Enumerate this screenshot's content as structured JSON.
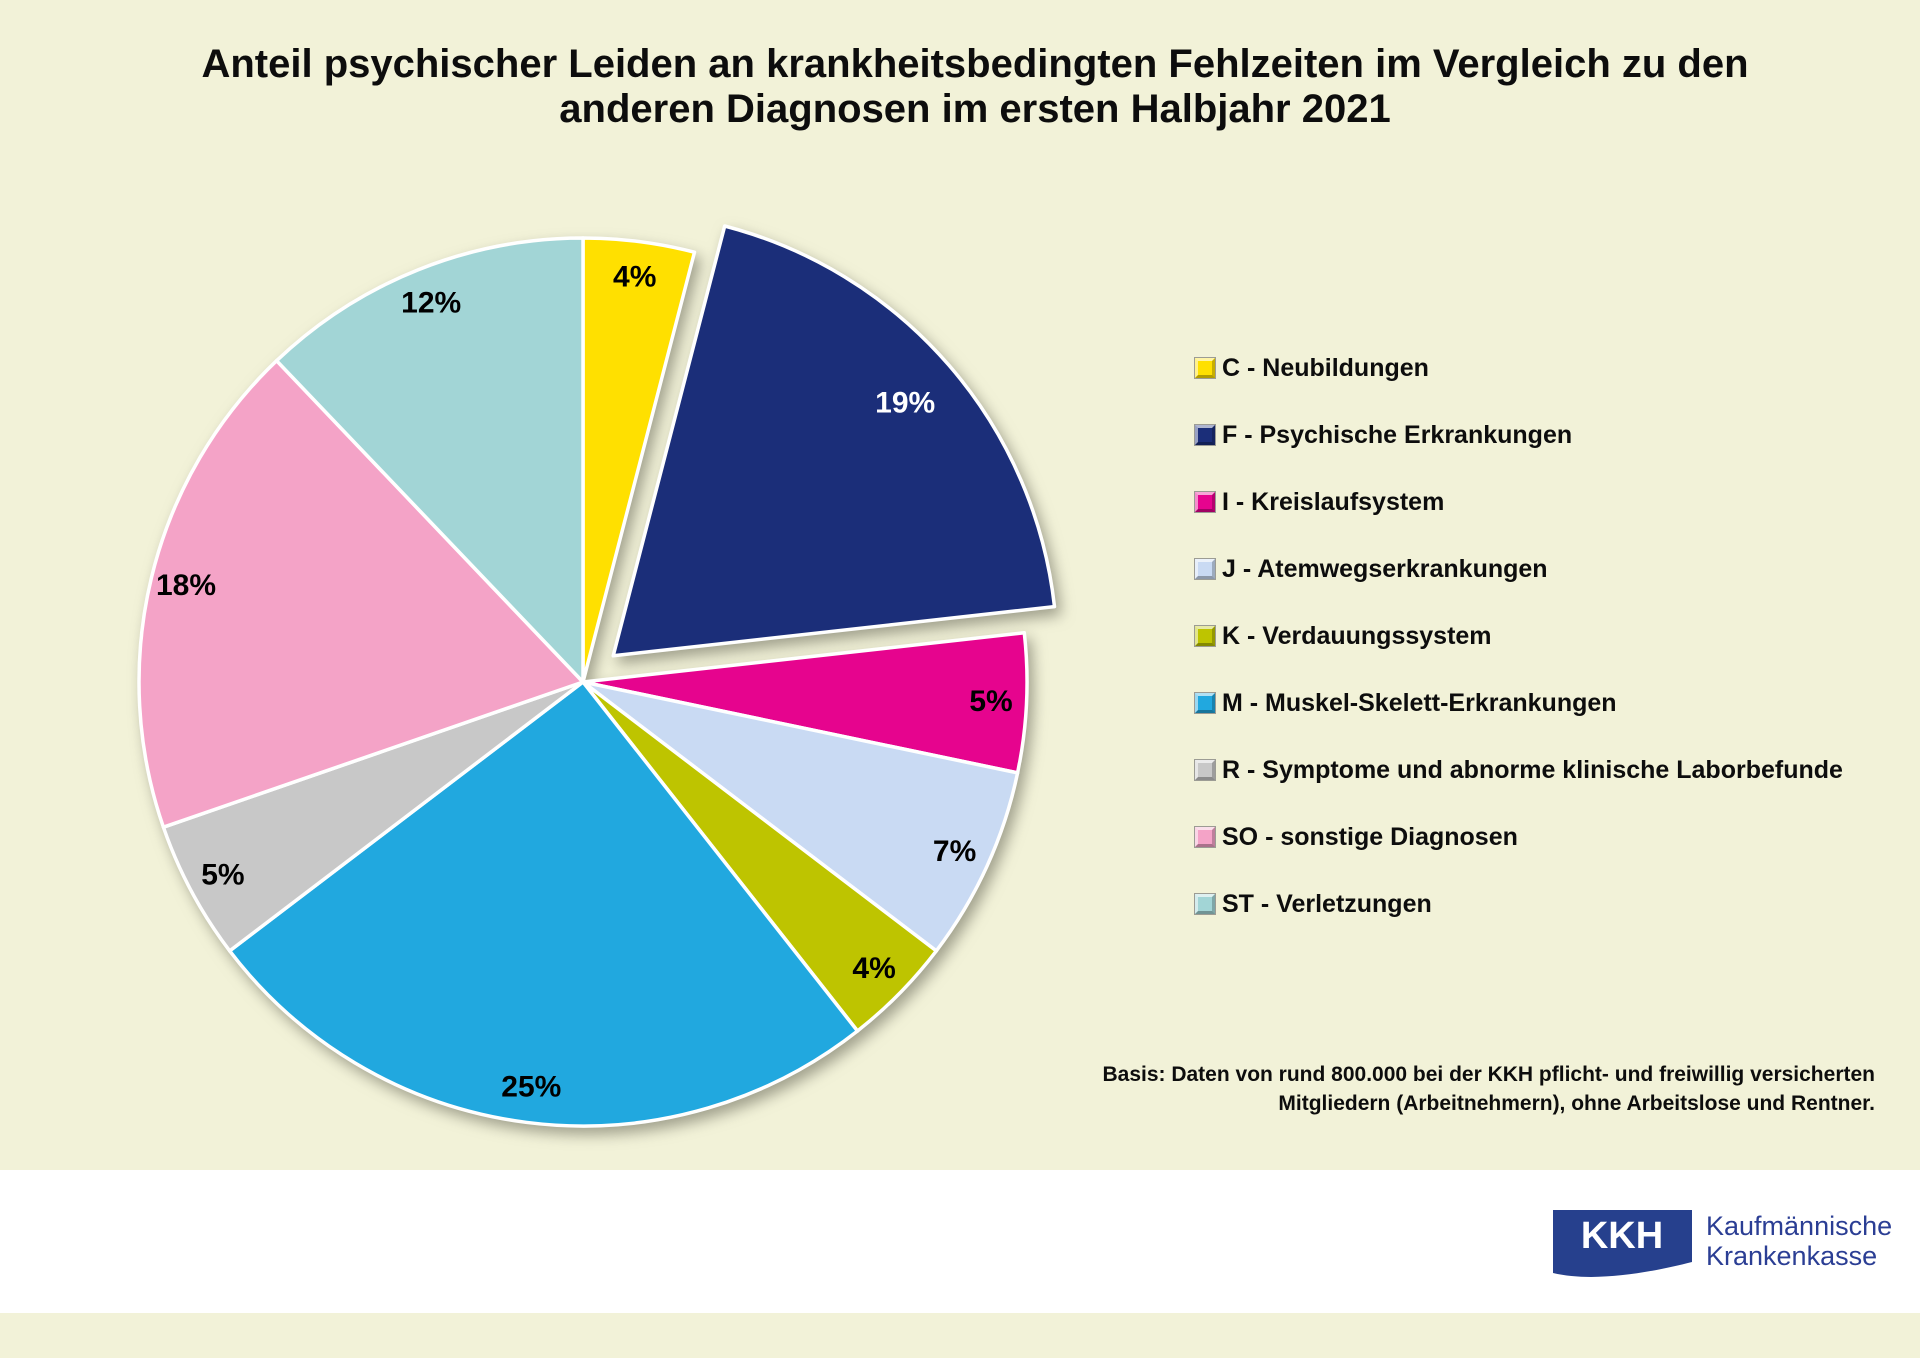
{
  "title": {
    "line1": "Anteil psychischer Leiden an krankheitsbedingten Fehlzeiten im Vergleich zu den",
    "line2": "anderen Diagnosen im ersten Halbjahr 2021"
  },
  "chart_data": {
    "type": "pie",
    "title": "Anteil psychischer Leiden an krankheitsbedingten Fehlzeiten im Vergleich zu den anderen Diagnosen im ersten Halbjahr 2021",
    "start_angle_deg": 0,
    "direction": "clockwise",
    "legend_position": "right",
    "slices": [
      {
        "code": "C",
        "label": "C - Neubildungen",
        "value": 4,
        "pct_label": "4%",
        "color": "#FFE000",
        "label_color": "#000000",
        "exploded": false
      },
      {
        "code": "F",
        "label": "F - Psychische Erkrankungen",
        "value": 19,
        "pct_label": "19%",
        "color": "#1B2E79",
        "label_color": "#FFFFFF",
        "exploded": true
      },
      {
        "code": "I",
        "label": "I - Kreislaufsystem",
        "value": 5,
        "pct_label": "5%",
        "color": "#E6048E",
        "label_color": "#000000",
        "exploded": false
      },
      {
        "code": "J",
        "label": "J - Atemwegserkrankungen",
        "value": 7,
        "pct_label": "7%",
        "color": "#C9DAF3",
        "label_color": "#000000",
        "exploded": false
      },
      {
        "code": "K",
        "label": "K - Verdauungssystem",
        "value": 4,
        "pct_label": "4%",
        "color": "#BEC400",
        "label_color": "#000000",
        "exploded": false
      },
      {
        "code": "M",
        "label": "M - Muskel-Skelett-Erkrankungen",
        "value": 25,
        "pct_label": "25%",
        "color": "#21A8DF",
        "label_color": "#000000",
        "exploded": false
      },
      {
        "code": "R",
        "label": "R - Symptome und abnorme klinische Laborbefunde",
        "value": 5,
        "pct_label": "5%",
        "color": "#C8C8C8",
        "label_color": "#000000",
        "exploded": false
      },
      {
        "code": "SO",
        "label": "SO - sonstige Diagnosen",
        "value": 18,
        "pct_label": "18%",
        "color": "#F4A3C7",
        "label_color": "#000000",
        "exploded": false
      },
      {
        "code": "ST",
        "label": "ST - Verletzungen",
        "value": 12,
        "pct_label": "12%",
        "color": "#A2D5D6",
        "label_color": "#000000",
        "exploded": false
      }
    ]
  },
  "footnote": {
    "line1": "Basis: Daten von rund 800.000 bei der KKH pflicht- und freiwillig versicherten",
    "line2": "Mitgliedern (Arbeitnehmern), ohne Arbeitslose und Rentner."
  },
  "logo": {
    "box_text": "KKH",
    "name_line1": "Kaufmännische",
    "name_line2": "Krankenkasse"
  },
  "colors": {
    "background": "#F2F2D8",
    "footer_band": "#FFFFFF",
    "kkh_blue": "#26408D",
    "kkh_text_blue": "#2B3E94"
  }
}
